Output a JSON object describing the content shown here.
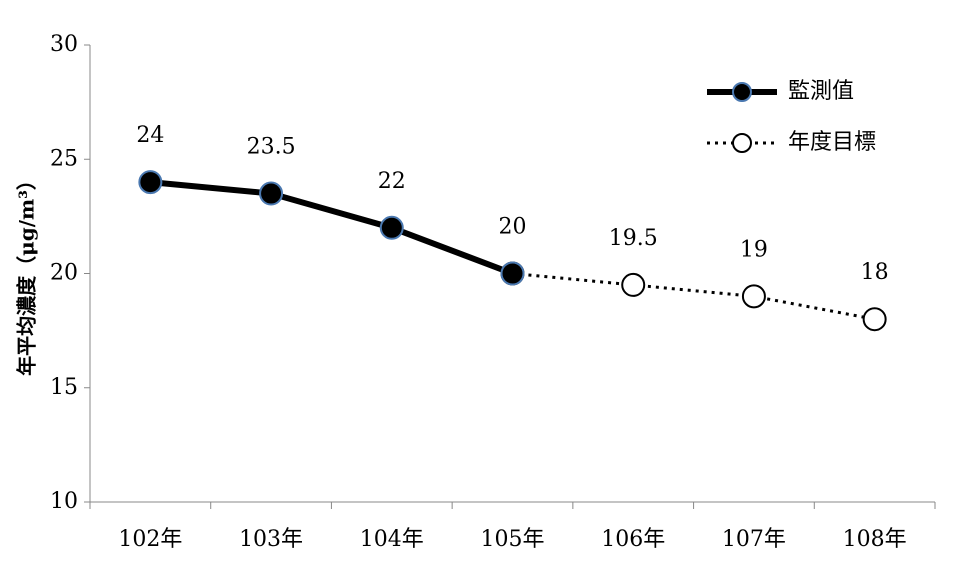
{
  "chart_data": {
    "type": "line",
    "y_label": "年平均濃度（μg/m³）",
    "categories": [
      "102年",
      "103年",
      "104年",
      "105年",
      "106年",
      "107年",
      "108年"
    ],
    "series": [
      {
        "name": "監測值",
        "color": "#000000",
        "line_style": "solid",
        "marker": "filled",
        "values": [
          24,
          23.5,
          22,
          20,
          null,
          null,
          null
        ]
      },
      {
        "name": "年度目標",
        "color": "#000000",
        "line_style": "dotted",
        "marker": "open",
        "values": [
          null,
          null,
          null,
          20,
          19.5,
          19,
          18
        ]
      }
    ],
    "ylim": [
      10,
      30
    ],
    "yticks": [
      10,
      15,
      20,
      25,
      30
    ]
  }
}
